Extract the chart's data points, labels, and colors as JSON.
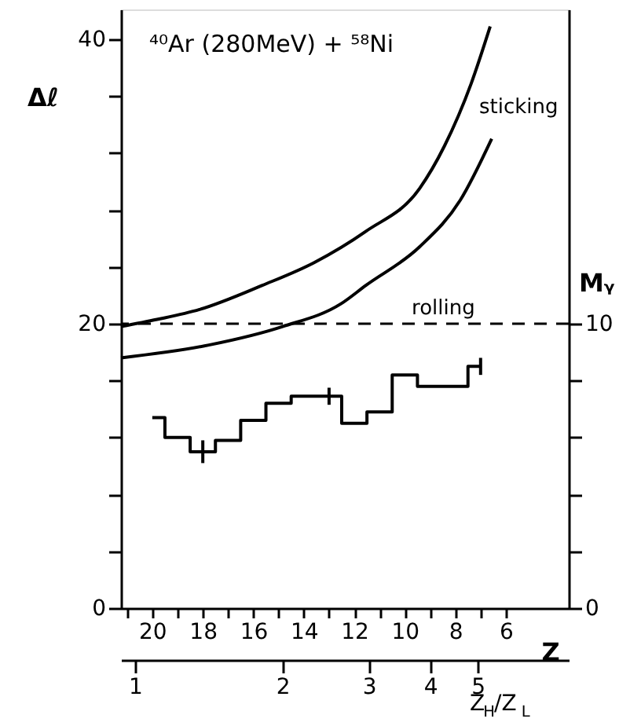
{
  "chart_data": {
    "type": "line",
    "title": "⁴⁰Ar (280MeV) + ⁵⁸Ni",
    "ylabel": "Δℓ",
    "y2label": "Mᵧ",
    "xlabel": "Z",
    "x2label": "Z$_{H}$/Z$_{L}$",
    "xlim": [
      21.24,
      3.51
    ],
    "xticks": [
      {
        "value": 21,
        "label": null
      },
      20,
      {
        "value": 19,
        "label": null
      },
      18,
      {
        "value": 17,
        "label": null
      },
      16,
      {
        "value": 15,
        "label": null
      },
      14,
      {
        "value": 13,
        "label": null
      },
      12,
      {
        "value": 11,
        "label": null
      },
      10,
      {
        "value": 9,
        "label": null
      },
      8,
      {
        "value": 7,
        "label": null
      },
      6
    ],
    "x2lim": [
      0.936,
      7.67
    ],
    "x2ticks": [
      1,
      2,
      3,
      4,
      5
    ],
    "log": "x2",
    "ylim": [
      0,
      42.1
    ],
    "yticks": [
      0,
      {
        "value": 4,
        "label": null
      },
      {
        "value": 8,
        "label": null
      },
      {
        "value": 12,
        "label": null
      },
      {
        "value": 16,
        "label": null
      },
      20,
      {
        "value": 24,
        "label": null
      },
      {
        "value": 28,
        "label": null
      },
      {
        "value": 32,
        "label": null
      },
      {
        "value": 36,
        "label": null
      },
      40
    ],
    "y2lim": [
      0,
      21.05
    ],
    "y2ticks": [
      0,
      {
        "value": 2,
        "label": null
      },
      {
        "value": 4,
        "label": null
      },
      {
        "value": 6,
        "label": null
      },
      {
        "value": 8,
        "label": null
      },
      10
    ],
    "grid": false,
    "line_style": "solid",
    "series": [
      {
        "color": "#000000",
        "x": [
          21.24,
          19.81,
          18.13,
          15.64,
          13.59,
          11.54,
          9.42,
          8.43,
          7.37,
          6.62
        ],
        "values": [
          19.8,
          20.3,
          21.0,
          22.7,
          24.3,
          26.5,
          29.5,
          32.5,
          36.9,
          40.9
        ]
      },
      {
        "color": "#000000",
        "x": [
          21.24,
          17.76,
          14.84,
          12.53,
          11.54,
          9.42,
          7.8,
          6.56
        ],
        "values": [
          17.6,
          18.5,
          19.8,
          21.4,
          22.7,
          25.4,
          28.7,
          33.0
        ]
      },
      {
        "type": "step",
        "axis": "y2",
        "color": "#000000",
        "x": [
          20,
          19,
          18,
          17,
          16,
          15,
          14,
          13,
          12,
          11,
          10,
          9,
          8,
          7
        ],
        "values": [
          6.7,
          6.0,
          5.5,
          5.9,
          6.6,
          7.2,
          7.45,
          7.45,
          6.5,
          6.9,
          8.2,
          7.8,
          7.8,
          8.5
        ],
        "errors": [
          null,
          null,
          0.4,
          null,
          null,
          null,
          null,
          0.3,
          null,
          null,
          null,
          null,
          null,
          0.3
        ]
      }
    ],
    "ref_lines": [
      {
        "axis": "y",
        "value": 20,
        "label": "rolling",
        "line_style": "dashed",
        "color": "#000000"
      }
    ],
    "annotations": [
      "sticking"
    ]
  }
}
